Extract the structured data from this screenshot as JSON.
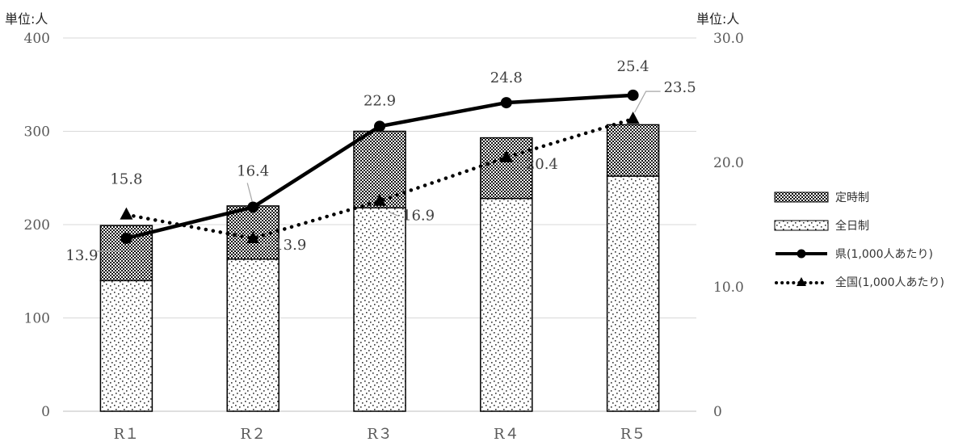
{
  "chart_data": {
    "type": "bar",
    "left_axis_unit": "単位:人",
    "right_axis_unit": "単位:人",
    "categories": [
      "R１",
      "R２",
      "R３",
      "R４",
      "R５"
    ],
    "ylim_left": [
      0,
      400
    ],
    "yticks_left": [
      "0",
      "100",
      "200",
      "300",
      "400"
    ],
    "ylim_right": [
      0,
      30
    ],
    "yticks_right": [
      "0",
      "10.0",
      "20.0",
      "30.0"
    ],
    "grid": true,
    "legend_position": "right",
    "bars": [
      {
        "name": "全日制",
        "values": [
          140,
          163,
          218,
          228,
          252
        ],
        "pattern": "dots"
      },
      {
        "name": "定時制",
        "values": [
          59,
          57,
          82,
          65,
          55
        ],
        "pattern": "checker"
      }
    ],
    "lines": [
      {
        "name": "県(1,000人あたり)",
        "values": [
          13.9,
          16.4,
          22.9,
          24.8,
          25.4
        ],
        "labels": [
          "13.9",
          "16.4",
          "22.9",
          "24.8",
          "25.4"
        ],
        "style": "solid",
        "marker": "circle"
      },
      {
        "name": "全国(1,000人あたり)",
        "values": [
          15.8,
          13.9,
          16.9,
          20.4,
          23.5
        ],
        "labels": [
          "15.8",
          "13.9",
          "16.9",
          "20.4",
          "23.5"
        ],
        "style": "dotted",
        "marker": "triangle"
      }
    ],
    "colors": {
      "line": "#000000",
      "grid": "#d9d9d9",
      "axis_text": "#595959"
    }
  }
}
